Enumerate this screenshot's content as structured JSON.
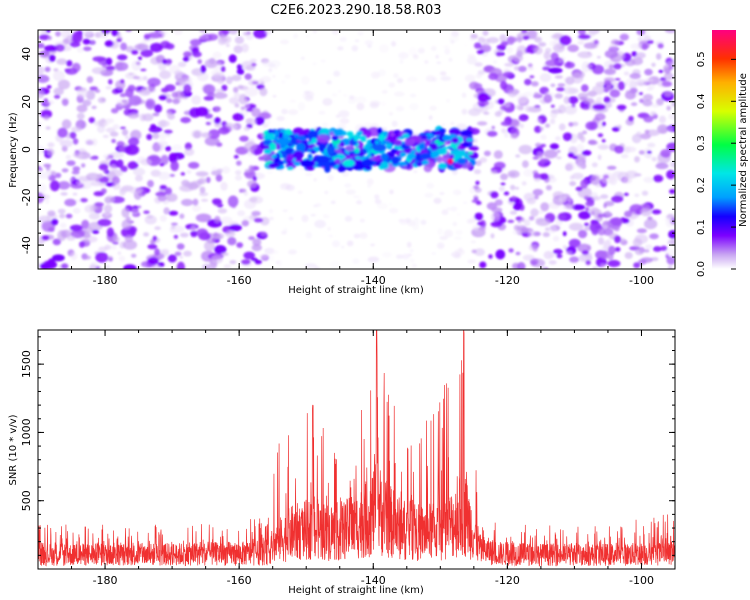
{
  "title": "C2E6.2023.290.18.58.R03",
  "chart_data": [
    {
      "type": "heatmap",
      "xlabel": "Height of straight line (km)",
      "ylabel": "Frequency (Hz)",
      "xlim": [
        -190,
        -95
      ],
      "ylim": [
        -50,
        50
      ],
      "x_ticks": [
        -180,
        -160,
        -140,
        -120,
        -100
      ],
      "y_ticks": [
        -40,
        -20,
        0,
        20,
        40
      ],
      "colorbar": {
        "label": "Normalized spectral amplitude",
        "range": [
          0,
          0.57
        ],
        "ticks": [
          0.0,
          0.1,
          0.2,
          0.3,
          0.4,
          0.5
        ],
        "colors": [
          "#ffffff",
          "#c9a6f2",
          "#7b00ff",
          "#1400ff",
          "#00a0ff",
          "#00e6e6",
          "#00ff44",
          "#d8ff00",
          "#ffb000",
          "#ff3000",
          "#ff0080"
        ]
      },
      "regions": [
        {
          "x": [
            -190,
            -156
          ],
          "f": [
            -50,
            50
          ],
          "level": "noise",
          "mean_amplitude": 0.07
        },
        {
          "x": [
            -156,
            -125
          ],
          "f": [
            -8,
            8
          ],
          "level": "signal",
          "mean_amplitude": 0.2
        },
        {
          "x": [
            -156,
            -125
          ],
          "f": [
            -50,
            50
          ],
          "level": "background",
          "mean_amplitude": 0.02
        },
        {
          "x": [
            -125,
            -95
          ],
          "f": [
            -50,
            50
          ],
          "level": "noise",
          "mean_amplitude": 0.07
        }
      ],
      "peak": {
        "x": -128.5,
        "f": -5,
        "amplitude": 0.57
      }
    },
    {
      "type": "line",
      "xlabel": "Height of straight line (km)",
      "ylabel": "SNR (10 * v/v)",
      "xlim": [
        -190,
        -95
      ],
      "ylim": [
        0,
        1750
      ],
      "x_ticks": [
        -180,
        -160,
        -140,
        -120,
        -100
      ],
      "y_ticks": [
        500,
        1000,
        1500
      ],
      "color": "#f03030",
      "envelope": {
        "x": [
          -190,
          -175,
          -160,
          -156,
          -154,
          -152,
          -149,
          -146,
          -143,
          -141,
          -139.5,
          -138,
          -136,
          -133,
          -130,
          -128,
          -126.5,
          -125.5,
          -124,
          -121,
          -115,
          -105,
          -95
        ],
        "baseline": [
          150,
          150,
          160,
          170,
          300,
          380,
          420,
          380,
          430,
          520,
          650,
          520,
          420,
          380,
          400,
          480,
          600,
          450,
          200,
          160,
          150,
          150,
          160
        ],
        "max": [
          330,
          330,
          340,
          400,
          1050,
          1050,
          1200,
          900,
          900,
          1400,
          1750,
          1500,
          1100,
          1000,
          1300,
          1500,
          1750,
          1150,
          380,
          340,
          320,
          320,
          430
        ]
      },
      "peaks": [
        {
          "x": -139.5,
          "y": 1750
        },
        {
          "x": -126.5,
          "y": 1750
        },
        {
          "x": -149,
          "y": 1200
        }
      ]
    }
  ]
}
